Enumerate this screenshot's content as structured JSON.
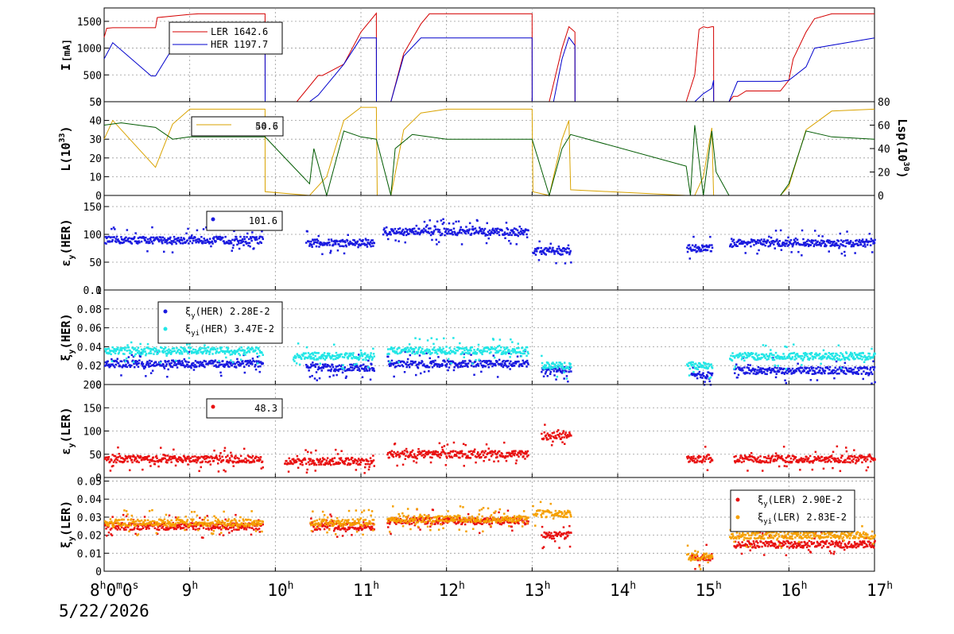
{
  "date_label": "5/22/2026",
  "time_axis": {
    "range_hours": [
      8,
      17
    ],
    "ticks": [
      {
        "t": 8,
        "main": "8",
        "sup": "h",
        "rest": "0",
        "sup2": "m",
        "rest2": "0",
        "sup3": "s"
      },
      {
        "t": 9,
        "main": "9",
        "sup": "h"
      },
      {
        "t": 10,
        "main": "10",
        "sup": "h"
      },
      {
        "t": 11,
        "main": "11",
        "sup": "h"
      },
      {
        "t": 12,
        "main": "12",
        "sup": "h"
      },
      {
        "t": 13,
        "main": "13",
        "sup": "h"
      },
      {
        "t": 14,
        "main": "14",
        "sup": "h"
      },
      {
        "t": 15,
        "main": "15",
        "sup": "h"
      },
      {
        "t": 16,
        "main": "16",
        "sup": "h"
      },
      {
        "t": 17,
        "main": "17",
        "sup": "h"
      }
    ]
  },
  "colors": {
    "ler": "#d40000",
    "her": "#0000cc",
    "lumi": "#d9a300",
    "lsp": "#005a00",
    "eps_her": "#1a1adf",
    "xi_her": "#1a1adf",
    "xi_her_i": "#22e6e6",
    "eps_ler": "#e81010",
    "xi_ler": "#e81010",
    "xi_ler_i": "#f5a000"
  },
  "chart_data": [
    {
      "type": "line",
      "id": "current",
      "ylabel": "I",
      "ylabel_unit": "[mA]",
      "ylim": [
        0,
        1750
      ],
      "yticks": [
        0,
        500,
        1000,
        1500
      ],
      "grid": true,
      "legend_placement": "top-left",
      "series": [
        {
          "name": "LER",
          "legend_value": "1642.6",
          "color_key": "ler",
          "x": [
            8.0,
            8.03,
            8.1,
            8.6,
            8.62,
            9.0,
            9.1,
            9.3,
            9.88,
            9.881,
            10.2,
            10.25,
            10.5,
            10.52,
            10.55,
            10.8,
            11.0,
            11.18,
            11.181,
            11.35,
            11.5,
            11.7,
            11.8,
            12.0,
            13.0,
            13.001,
            13.2,
            13.35,
            13.43,
            13.5,
            13.501,
            14.8,
            14.9,
            14.95,
            15.0,
            15.05,
            15.1,
            15.12,
            15.121,
            15.3,
            15.35,
            15.4,
            15.5,
            15.9,
            16.0,
            16.05,
            16.2,
            16.3,
            16.5,
            17.0
          ],
          "y": [
            1200,
            1370,
            1380,
            1380,
            1570,
            1630,
            1640,
            1640,
            1640,
            0,
            0,
            0,
            490,
            490,
            490,
            700,
            1300,
            1650,
            0,
            0,
            900,
            1450,
            1640,
            1640,
            1640,
            0,
            0,
            1000,
            1400,
            1300,
            0,
            0,
            500,
            1350,
            1400,
            1380,
            1400,
            1400,
            0,
            0,
            100,
            100,
            200,
            200,
            400,
            800,
            1300,
            1550,
            1640,
            1640
          ]
        },
        {
          "name": "HER",
          "legend_value": "1197.7",
          "color_key": "her",
          "x": [
            8.0,
            8.1,
            8.55,
            8.6,
            8.8,
            9.0,
            9.88,
            9.881,
            10.4,
            10.5,
            10.8,
            11.0,
            11.18,
            11.181,
            11.35,
            11.5,
            11.7,
            13.0,
            13.001,
            13.25,
            13.35,
            13.43,
            13.5,
            13.501,
            14.8,
            14.9,
            15.0,
            15.1,
            15.12,
            15.121,
            15.3,
            15.4,
            15.9,
            16.0,
            16.2,
            16.3,
            17.0
          ],
          "y": [
            800,
            1100,
            480,
            480,
            1000,
            1180,
            1200,
            0,
            0,
            120,
            700,
            1190,
            1190,
            0,
            0,
            850,
            1190,
            1190,
            0,
            0,
            800,
            1200,
            1050,
            0,
            0,
            0,
            150,
            250,
            400,
            0,
            0,
            380,
            380,
            400,
            650,
            1000,
            1190
          ]
        }
      ]
    },
    {
      "type": "line",
      "id": "luminosity",
      "ylabel": "L(10",
      "ylabel_sup": "33",
      "ylabel_end": ")",
      "ylim": [
        0,
        50
      ],
      "yticks": [
        0,
        10,
        20,
        30,
        40,
        50
      ],
      "y2label": "Lsp(10",
      "y2label_sup": "30",
      "y2label_end": ")",
      "y2lim": [
        0,
        80
      ],
      "y2ticks": [
        0,
        20,
        40,
        60,
        80
      ],
      "grid": true,
      "legend_placement": "top-left",
      "legend_value": "50.6",
      "legend_value_overlap": "44.7",
      "series": [
        {
          "name": "L",
          "axis": "left",
          "color_key": "lumi",
          "x": [
            8.0,
            8.1,
            8.3,
            8.6,
            8.8,
            9.0,
            9.5,
            9.88,
            9.881,
            10.4,
            10.6,
            10.8,
            11.0,
            11.18,
            11.19,
            11.35,
            11.5,
            11.7,
            12.0,
            13.0,
            13.01,
            13.2,
            13.35,
            13.43,
            13.45,
            14.8,
            14.9,
            15.0,
            15.1,
            15.12,
            15.3,
            15.9,
            16.0,
            16.2,
            16.5,
            17.0
          ],
          "y": [
            30,
            40,
            30,
            15,
            38,
            46,
            46,
            46,
            2,
            0,
            10,
            40,
            47,
            47,
            0,
            0,
            35,
            44,
            46,
            46,
            2,
            0,
            30,
            40,
            3,
            0,
            0,
            10,
            36,
            0,
            0,
            0,
            5,
            35,
            45,
            46
          ]
        },
        {
          "name": "Lsp",
          "axis": "right",
          "color_key": "lsp",
          "x": [
            8.0,
            8.2,
            8.6,
            8.8,
            9.0,
            9.5,
            9.88,
            10.4,
            10.45,
            10.6,
            10.8,
            11.0,
            11.18,
            11.35,
            11.4,
            11.6,
            12.0,
            13.0,
            13.2,
            13.35,
            13.45,
            14.8,
            14.85,
            14.9,
            15.0,
            15.1,
            15.15,
            15.3,
            15.9,
            16.0,
            16.2,
            16.5,
            17.0
          ],
          "y": [
            60,
            62,
            58,
            48,
            50,
            50,
            50,
            10,
            40,
            0,
            55,
            50,
            48,
            0,
            40,
            52,
            48,
            48,
            0,
            40,
            52,
            25,
            0,
            60,
            0,
            55,
            20,
            0,
            0,
            10,
            55,
            50,
            48
          ]
        }
      ]
    },
    {
      "type": "scatter",
      "id": "eps_her",
      "ylabel": "ε",
      "ylabel_sub": "y",
      "ylabel_end": "(HER)",
      "ylim": [
        0,
        170
      ],
      "yticks": [
        0,
        50,
        100,
        150
      ],
      "grid": true,
      "legend_placement": "top-left",
      "legend_value": "101.6",
      "series": [
        {
          "name": "",
          "color_key": "eps_her",
          "segments": [
            [
              8.0,
              9.85,
              90
            ],
            [
              10.35,
              11.15,
              85
            ],
            [
              11.25,
              12.95,
              105
            ],
            [
              13.0,
              13.45,
              70
            ],
            [
              14.8,
              15.1,
              75
            ],
            [
              15.3,
              17.0,
              85
            ]
          ]
        }
      ]
    },
    {
      "type": "scatter",
      "id": "xi_her",
      "ylabel": "ξ",
      "ylabel_sub": "y",
      "ylabel_end": "(HER)",
      "ylim": [
        0,
        0.1
      ],
      "yticks": [
        0,
        0.02,
        0.04,
        0.06,
        0.08,
        0.1
      ],
      "yticklabels": [
        "0",
        "0.02",
        "0.04",
        "0.06",
        "0.08",
        "0.1"
      ],
      "grid": true,
      "legend_placement": "top-left",
      "series": [
        {
          "name": "ξy(HER)",
          "legend_label": "ξ",
          "legend_sub": "y",
          "legend_rest": "(HER)",
          "legend_value": "2.28E-2",
          "color_key": "xi_her",
          "segments": [
            [
              8.0,
              9.85,
              0.022
            ],
            [
              10.35,
              11.15,
              0.018
            ],
            [
              11.3,
              12.95,
              0.022
            ],
            [
              13.1,
              13.45,
              0.015
            ],
            [
              14.85,
              15.1,
              0.01
            ],
            [
              15.35,
              17.0,
              0.015
            ]
          ]
        },
        {
          "name": "ξyi(HER)",
          "legend_label": "ξ",
          "legend_sub": "yi",
          "legend_rest": "(HER)",
          "legend_value": "3.47E-2",
          "color_key": "xi_her_i",
          "segments": [
            [
              8.0,
              9.85,
              0.036
            ],
            [
              10.2,
              11.15,
              0.03
            ],
            [
              11.3,
              12.95,
              0.036
            ],
            [
              13.1,
              13.45,
              0.02
            ],
            [
              14.8,
              15.1,
              0.02
            ],
            [
              15.3,
              17.0,
              0.03
            ]
          ]
        }
      ]
    },
    {
      "type": "scatter",
      "id": "eps_ler",
      "ylabel": "ε",
      "ylabel_sub": "y",
      "ylabel_end": "(LER)",
      "ylim": [
        0,
        200
      ],
      "yticks": [
        0,
        50,
        100,
        150,
        200
      ],
      "grid": true,
      "legend_placement": "top-left",
      "legend_value": "48.3",
      "series": [
        {
          "name": "",
          "color_key": "eps_ler",
          "segments": [
            [
              8.0,
              9.85,
              40
            ],
            [
              10.1,
              11.15,
              35
            ],
            [
              11.3,
              12.95,
              50
            ],
            [
              13.1,
              13.45,
              90
            ],
            [
              14.8,
              15.1,
              40
            ],
            [
              15.35,
              17.0,
              40
            ]
          ]
        }
      ]
    },
    {
      "type": "scatter",
      "id": "xi_ler",
      "ylabel": "ξ",
      "ylabel_sub": "y",
      "ylabel_end": "(LER)",
      "ylim": [
        0,
        0.052
      ],
      "yticks": [
        0,
        0.01,
        0.02,
        0.03,
        0.04,
        0.05
      ],
      "yticklabels": [
        "0",
        "0.01",
        "0.02",
        "0.03",
        "0.04",
        "0.05"
      ],
      "grid": true,
      "legend_placement": "top-right",
      "series": [
        {
          "name": "ξy(LER)",
          "legend_label": "ξ",
          "legend_sub": "y",
          "legend_rest": "(LER)",
          "legend_value": "2.90E-2",
          "color_key": "xi_ler",
          "segments": [
            [
              8.0,
              9.85,
              0.025
            ],
            [
              10.4,
              11.15,
              0.025
            ],
            [
              11.3,
              12.95,
              0.028
            ],
            [
              13.1,
              13.45,
              0.02
            ],
            [
              14.85,
              15.1,
              0.008
            ],
            [
              15.35,
              17.0,
              0.015
            ]
          ]
        },
        {
          "name": "ξyi(LER)",
          "legend_label": "ξ",
          "legend_sub": "yi",
          "legend_rest": "(LER)",
          "legend_value": "2.83E-2",
          "color_key": "xi_ler_i",
          "segments": [
            [
              8.0,
              9.85,
              0.027
            ],
            [
              10.4,
              11.15,
              0.027
            ],
            [
              11.3,
              12.95,
              0.029
            ],
            [
              13.0,
              13.45,
              0.032
            ],
            [
              14.8,
              15.1,
              0.008
            ],
            [
              15.3,
              17.0,
              0.02
            ]
          ]
        }
      ]
    }
  ]
}
